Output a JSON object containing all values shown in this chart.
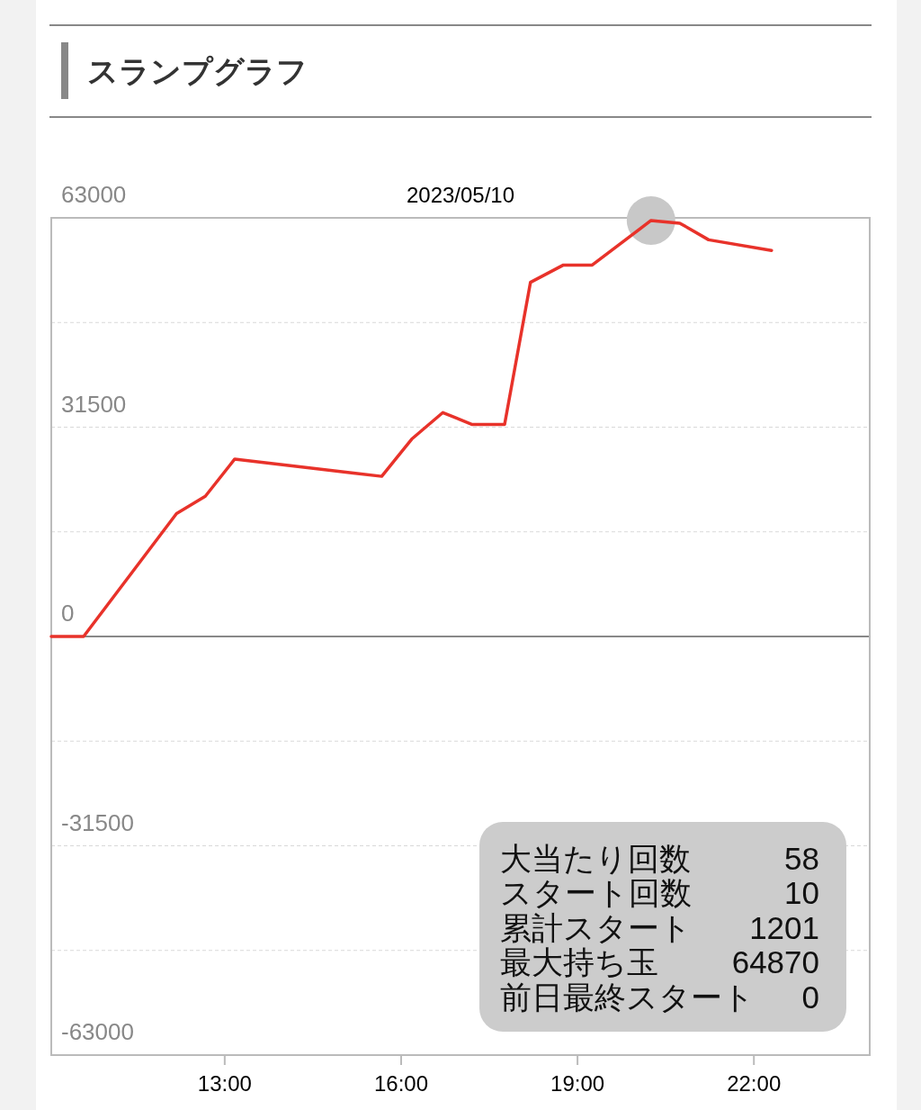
{
  "chart_data": {
    "type": "line",
    "title": "スランプグラフ",
    "subtitle": "2023/05/10",
    "x": [
      10.05,
      10.6,
      12.18,
      12.67,
      13.17,
      15.19,
      15.67,
      16.18,
      16.71,
      17.21,
      17.76,
      18.2,
      18.76,
      19.25,
      20.25,
      20.74,
      21.23,
      22.3
    ],
    "series": [
      {
        "type": "scatter",
        "color": "#c8c8c8",
        "x": [
          20.25
        ],
        "values": [
          62600
        ]
      },
      {
        "color": "#e8322a",
        "values": [
          0,
          0,
          18500,
          21100,
          26700,
          24600,
          24100,
          29700,
          33700,
          31900,
          31900,
          53300,
          55900,
          55900,
          62600,
          62200,
          59700,
          58100
        ]
      }
    ],
    "xlim": [
      10.05,
      23.97
    ],
    "xticks": [
      {
        "value": 13,
        "label": "13:00"
      },
      {
        "value": 16,
        "label": "16:00"
      },
      {
        "value": 19,
        "label": "19:00"
      },
      {
        "value": 22,
        "label": "22:00"
      }
    ],
    "ylim": [
      -63000,
      63000
    ],
    "yticks": [
      -63000,
      {
        "value": -47250,
        "label": null
      },
      -31500,
      {
        "value": -15750,
        "label": null
      },
      0,
      {
        "value": 15750,
        "label": null
      },
      31500,
      {
        "value": 47250,
        "label": null
      },
      63000
    ],
    "grid": "y",
    "ref_lines": [
      {
        "axis": "y",
        "value": 0,
        "color": "#888888"
      }
    ],
    "annotations": [
      "大当たり回数 58",
      "スタート回数 10",
      "累計スタート 1201",
      "最大持ち玉 64870",
      "前日最終スタート 0"
    ]
  }
}
